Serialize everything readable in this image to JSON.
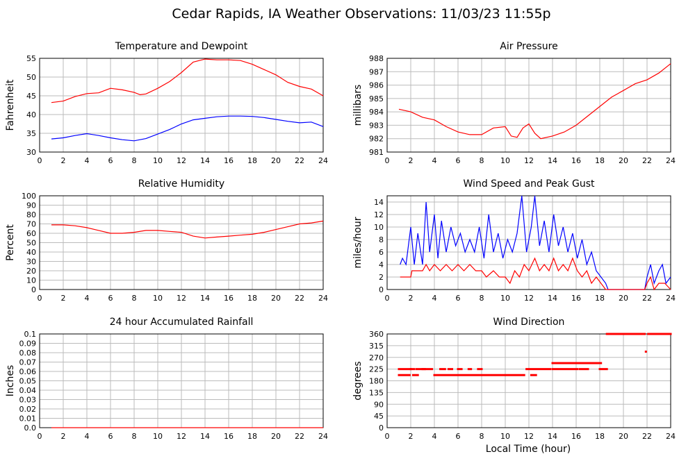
{
  "page": {
    "title": "Cedar Rapids, IA Weather Observations: 11/03/23 11:55p",
    "xlabel": "Local Time (hour)"
  },
  "colors": {
    "red": "#ff0000",
    "blue": "#0000ff",
    "grid": "#bbbbbb",
    "frame": "#000000"
  },
  "chart_data": [
    {
      "id": "temp",
      "type": "line",
      "title": "Temperature and Dewpoint",
      "ylabel": "Fahrenheit",
      "xlim": [
        0,
        24
      ],
      "ylim": [
        30,
        55
      ],
      "xticks": [
        "2",
        "4",
        "6",
        "8",
        "10",
        "12",
        "14",
        "16",
        "18",
        "20",
        "22",
        "24"
      ],
      "yticks": [
        "30",
        "35",
        "40",
        "45",
        "50",
        "55"
      ],
      "series": [
        {
          "color": "#ff0000",
          "points": [
            [
              1,
              43.2
            ],
            [
              2,
              43.6
            ],
            [
              3,
              44.8
            ],
            [
              4,
              45.6
            ],
            [
              5,
              45.8
            ],
            [
              6,
              47.0
            ],
            [
              7,
              46.6
            ],
            [
              8,
              45.9
            ],
            [
              8.5,
              45.3
            ],
            [
              9,
              45.5
            ],
            [
              10,
              47.0
            ],
            [
              11,
              48.8
            ],
            [
              12,
              51.2
            ],
            [
              13,
              54.0
            ],
            [
              14,
              54.8
            ],
            [
              15,
              54.6
            ],
            [
              16,
              54.6
            ],
            [
              17,
              54.4
            ],
            [
              18,
              53.4
            ],
            [
              19,
              52.0
            ],
            [
              20,
              50.6
            ],
            [
              21,
              48.6
            ],
            [
              22,
              47.5
            ],
            [
              23,
              46.8
            ],
            [
              24,
              45.0
            ]
          ]
        },
        {
          "color": "#0000ff",
          "points": [
            [
              1,
              33.5
            ],
            [
              2,
              33.8
            ],
            [
              3,
              34.4
            ],
            [
              4,
              34.9
            ],
            [
              5,
              34.4
            ],
            [
              6,
              33.8
            ],
            [
              7,
              33.3
            ],
            [
              8,
              33.0
            ],
            [
              9,
              33.6
            ],
            [
              10,
              34.8
            ],
            [
              11,
              36.0
            ],
            [
              12,
              37.5
            ],
            [
              13,
              38.6
            ],
            [
              14,
              39.0
            ],
            [
              15,
              39.4
            ],
            [
              16,
              39.6
            ],
            [
              17,
              39.6
            ],
            [
              18,
              39.5
            ],
            [
              19,
              39.2
            ],
            [
              20,
              38.7
            ],
            [
              21,
              38.2
            ],
            [
              22,
              37.8
            ],
            [
              23,
              38.0
            ],
            [
              24,
              36.8
            ]
          ]
        }
      ]
    },
    {
      "id": "pressure",
      "type": "line",
      "title": "Air Pressure",
      "ylabel": "millibars",
      "xlim": [
        0,
        24
      ],
      "ylim": [
        981,
        988
      ],
      "xticks": [
        "2",
        "4",
        "6",
        "8",
        "10",
        "12",
        "14",
        "16",
        "18",
        "20",
        "22",
        "24"
      ],
      "yticks": [
        "981",
        "982",
        "983",
        "984",
        "985",
        "986",
        "987",
        "988"
      ],
      "series": [
        {
          "color": "#ff0000",
          "points": [
            [
              1,
              984.2
            ],
            [
              2,
              984.0
            ],
            [
              3,
              983.6
            ],
            [
              4,
              983.4
            ],
            [
              5,
              982.9
            ],
            [
              6,
              982.5
            ],
            [
              7,
              982.3
            ],
            [
              8,
              982.3
            ],
            [
              9,
              982.8
            ],
            [
              10,
              982.9
            ],
            [
              10.5,
              982.2
            ],
            [
              11,
              982.1
            ],
            [
              11.5,
              982.8
            ],
            [
              12,
              983.1
            ],
            [
              12.5,
              982.4
            ],
            [
              13,
              982.0
            ],
            [
              14,
              982.2
            ],
            [
              15,
              982.5
            ],
            [
              16,
              983.0
            ],
            [
              17,
              983.7
            ],
            [
              18,
              984.4
            ],
            [
              19,
              985.1
            ],
            [
              20,
              985.6
            ],
            [
              21,
              986.1
            ],
            [
              22,
              986.4
            ],
            [
              23,
              986.9
            ],
            [
              24,
              987.6
            ]
          ]
        }
      ]
    },
    {
      "id": "humidity",
      "type": "line",
      "title": "Relative Humidity",
      "ylabel": "Percent",
      "xlim": [
        0,
        24
      ],
      "ylim": [
        0,
        100
      ],
      "xticks": [
        "2",
        "4",
        "6",
        "8",
        "10",
        "12",
        "14",
        "16",
        "18",
        "20",
        "22",
        "24"
      ],
      "yticks": [
        "0",
        "10",
        "20",
        "30",
        "40",
        "50",
        "60",
        "70",
        "80",
        "90",
        "100"
      ],
      "series": [
        {
          "color": "#ff0000",
          "points": [
            [
              1,
              69
            ],
            [
              2,
              69
            ],
            [
              3,
              68
            ],
            [
              4,
              66
            ],
            [
              5,
              63
            ],
            [
              6,
              60
            ],
            [
              7,
              60
            ],
            [
              8,
              61
            ],
            [
              9,
              63
            ],
            [
              10,
              63
            ],
            [
              11,
              62
            ],
            [
              12,
              61
            ],
            [
              13,
              57
            ],
            [
              14,
              55
            ],
            [
              15,
              56
            ],
            [
              16,
              57
            ],
            [
              17,
              58
            ],
            [
              18,
              59
            ],
            [
              19,
              61
            ],
            [
              20,
              64
            ],
            [
              21,
              67
            ],
            [
              22,
              70
            ],
            [
              23,
              71
            ],
            [
              24,
              73
            ]
          ]
        }
      ]
    },
    {
      "id": "wind",
      "type": "line",
      "title": "Wind Speed and Peak Gust",
      "ylabel": "miles/hour",
      "xlim": [
        0,
        24
      ],
      "ylim": [
        0,
        15
      ],
      "xticks": [
        "2",
        "4",
        "6",
        "8",
        "10",
        "12",
        "14",
        "16",
        "18",
        "20",
        "22",
        "24"
      ],
      "yticks": [
        "0",
        "2",
        "4",
        "6",
        "8",
        "10",
        "12",
        "14"
      ],
      "series": [
        {
          "color": "#0000ff",
          "points": [
            [
              1.1,
              4
            ],
            [
              1.3,
              5
            ],
            [
              1.6,
              4
            ],
            [
              2,
              10
            ],
            [
              2.3,
              4
            ],
            [
              2.6,
              9
            ],
            [
              3,
              4
            ],
            [
              3.3,
              14
            ],
            [
              3.6,
              6
            ],
            [
              4,
              12
            ],
            [
              4.3,
              5
            ],
            [
              4.6,
              11
            ],
            [
              5,
              6
            ],
            [
              5.4,
              10
            ],
            [
              5.8,
              7
            ],
            [
              6.2,
              9
            ],
            [
              6.6,
              6
            ],
            [
              7,
              8
            ],
            [
              7.4,
              6
            ],
            [
              7.8,
              10
            ],
            [
              8.2,
              5
            ],
            [
              8.6,
              12
            ],
            [
              9,
              6
            ],
            [
              9.4,
              9
            ],
            [
              9.8,
              5
            ],
            [
              10.2,
              8
            ],
            [
              10.6,
              6
            ],
            [
              11,
              9
            ],
            [
              11.4,
              15
            ],
            [
              11.8,
              6
            ],
            [
              12.2,
              10
            ],
            [
              12.5,
              15
            ],
            [
              12.9,
              7
            ],
            [
              13.3,
              11
            ],
            [
              13.7,
              6
            ],
            [
              14.1,
              12
            ],
            [
              14.5,
              7
            ],
            [
              14.9,
              10
            ],
            [
              15.3,
              6
            ],
            [
              15.7,
              9
            ],
            [
              16.1,
              5
            ],
            [
              16.5,
              8
            ],
            [
              16.9,
              4
            ],
            [
              17.3,
              6
            ],
            [
              17.7,
              3
            ],
            [
              18.1,
              2
            ],
            [
              18.5,
              1
            ],
            [
              18.7,
              0
            ],
            [
              21.8,
              0
            ],
            [
              22,
              2
            ],
            [
              22.3,
              4
            ],
            [
              22.6,
              1
            ],
            [
              23,
              3
            ],
            [
              23.3,
              4
            ],
            [
              23.6,
              1
            ],
            [
              24,
              2
            ]
          ]
        },
        {
          "color": "#ff0000",
          "points": [
            [
              1.1,
              2
            ],
            [
              2,
              2
            ],
            [
              2.1,
              3
            ],
            [
              3,
              3
            ],
            [
              3.3,
              4
            ],
            [
              3.6,
              3
            ],
            [
              4,
              4
            ],
            [
              4.5,
              3
            ],
            [
              5,
              4
            ],
            [
              5.5,
              3
            ],
            [
              6,
              4
            ],
            [
              6.5,
              3
            ],
            [
              7,
              4
            ],
            [
              7.5,
              3
            ],
            [
              8,
              3
            ],
            [
              8.4,
              2
            ],
            [
              9,
              3
            ],
            [
              9.5,
              2
            ],
            [
              10,
              2
            ],
            [
              10.4,
              1
            ],
            [
              10.8,
              3
            ],
            [
              11.2,
              2
            ],
            [
              11.6,
              4
            ],
            [
              12,
              3
            ],
            [
              12.5,
              5
            ],
            [
              12.9,
              3
            ],
            [
              13.3,
              4
            ],
            [
              13.7,
              3
            ],
            [
              14.1,
              5
            ],
            [
              14.5,
              3
            ],
            [
              14.9,
              4
            ],
            [
              15.3,
              3
            ],
            [
              15.7,
              5
            ],
            [
              16.1,
              3
            ],
            [
              16.5,
              2
            ],
            [
              16.9,
              3
            ],
            [
              17.3,
              1
            ],
            [
              17.7,
              2
            ],
            [
              18.1,
              1
            ],
            [
              18.5,
              0
            ],
            [
              21.8,
              0
            ],
            [
              22,
              1
            ],
            [
              22.3,
              2
            ],
            [
              22.6,
              0
            ],
            [
              23,
              1
            ],
            [
              23.5,
              1
            ],
            [
              24,
              0
            ]
          ]
        }
      ]
    },
    {
      "id": "rain",
      "type": "line",
      "title": "24 hour Accumulated Rainfall",
      "ylabel": "Inches",
      "xlim": [
        0,
        24
      ],
      "ylim": [
        0,
        0.1
      ],
      "xticks": [
        "2",
        "4",
        "6",
        "8",
        "10",
        "12",
        "14",
        "16",
        "18",
        "20",
        "22",
        "24"
      ],
      "yticks": [
        "0.0",
        "0.01",
        "0.02",
        "0.03",
        "0.04",
        "0.05",
        "0.06",
        "0.07",
        "0.08",
        "0.09",
        "0.1"
      ],
      "series": [
        {
          "color": "#ff0000",
          "points": [
            [
              1,
              0
            ],
            [
              24,
              0
            ]
          ]
        }
      ]
    },
    {
      "id": "direction",
      "type": "scatter",
      "title": "Wind Direction",
      "ylabel": "degrees",
      "xlim": [
        0,
        24
      ],
      "ylim": [
        0,
        360
      ],
      "xticks": [
        "2",
        "4",
        "6",
        "8",
        "10",
        "12",
        "14",
        "16",
        "18",
        "20",
        "22",
        "24"
      ],
      "yticks": [
        "0",
        "45",
        "90",
        "135",
        "180",
        "225",
        "270",
        "315",
        "360"
      ],
      "series": [
        {
          "color": "#ff0000",
          "runs": [
            [
              1.0,
              2.0,
              225
            ],
            [
              2.0,
              2.3,
              225
            ],
            [
              2.5,
              3.2,
              225
            ],
            [
              3.0,
              3.8,
              225
            ],
            [
              4.5,
              4.9,
              225
            ],
            [
              5.2,
              5.5,
              225
            ],
            [
              6.0,
              6.3,
              225
            ],
            [
              6.9,
              7.1,
              225
            ],
            [
              7.7,
              8.0,
              225
            ],
            [
              11.8,
              13.8,
              225
            ],
            [
              14.0,
              16.1,
              225
            ],
            [
              16.3,
              17.0,
              225
            ],
            [
              18.0,
              18.6,
              225
            ],
            [
              1.0,
              1.9,
              202
            ],
            [
              2.2,
              2.6,
              202
            ],
            [
              4.0,
              11.6,
              202
            ],
            [
              12.2,
              12.6,
              202
            ],
            [
              14.0,
              18.1,
              248
            ],
            [
              18.6,
              21.8,
              360
            ],
            [
              22.1,
              24.0,
              360
            ],
            [
              21.9,
              21.9,
              292
            ]
          ]
        }
      ]
    }
  ]
}
